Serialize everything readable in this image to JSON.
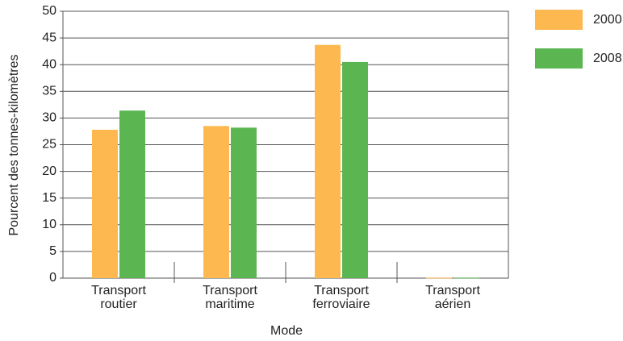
{
  "chart_data": {
    "type": "bar",
    "x_label": "Mode",
    "y_label": "Pourcent des tonnes-kilomètres",
    "categories": [
      "Transport routier",
      "Transport maritime",
      "Transport ferroviaire",
      "Transport aérien"
    ],
    "series": [
      {
        "name": "2000",
        "color": "#fdb94f",
        "values": [
          27.8,
          28.5,
          43.7,
          0.1
        ]
      },
      {
        "name": "2008",
        "color": "#5bb652",
        "values": [
          31.4,
          28.2,
          40.5,
          0.1
        ]
      }
    ],
    "ylim": [
      0,
      50
    ],
    "yticks": [
      0,
      5,
      10,
      15,
      20,
      25,
      30,
      35,
      40,
      45,
      50
    ],
    "grid": true,
    "legend": "right"
  }
}
